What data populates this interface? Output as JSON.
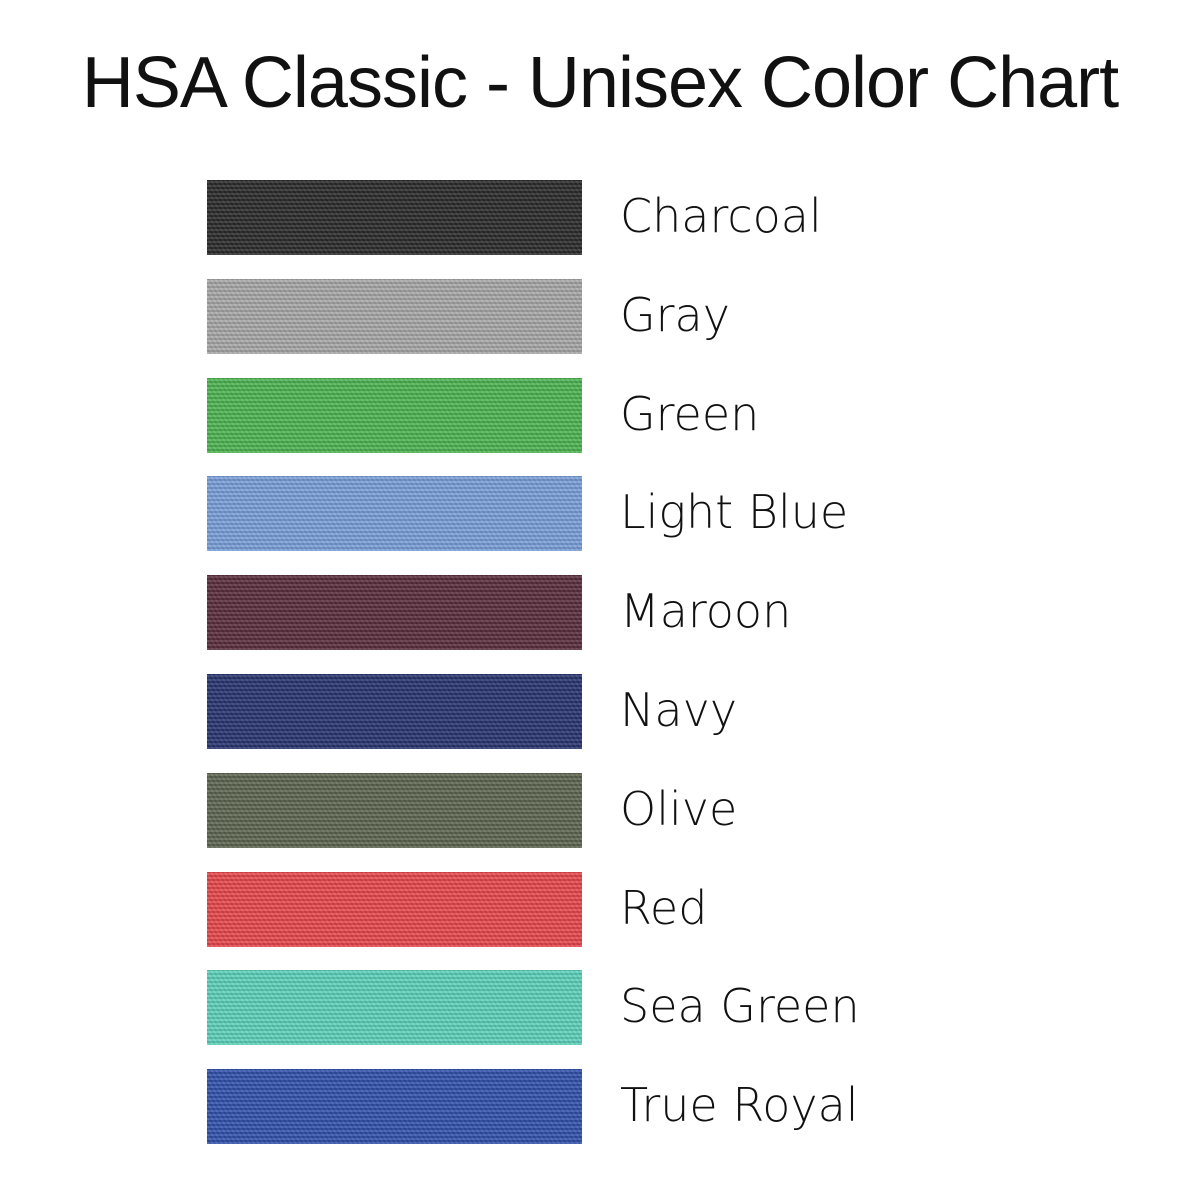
{
  "title": "HSA Classic - Unisex Color Chart",
  "colors": [
    {
      "name": "Charcoal",
      "swatch_color": "#2b2b2c"
    },
    {
      "name": "Gray",
      "swatch_color": "#a8a8a8"
    },
    {
      "name": "Green",
      "swatch_color": "#4db552"
    },
    {
      "name": "Light Blue",
      "swatch_color": "#7a9fda"
    },
    {
      "name": "Maroon",
      "swatch_color": "#5a2d3b"
    },
    {
      "name": "Navy",
      "swatch_color": "#293470"
    },
    {
      "name": "Olive",
      "swatch_color": "#5e6550"
    },
    {
      "name": "Red",
      "swatch_color": "#e8474d"
    },
    {
      "name": "Sea Green",
      "swatch_color": "#5dd2bb"
    },
    {
      "name": "True Royal",
      "swatch_color": "#3152ad"
    }
  ]
}
